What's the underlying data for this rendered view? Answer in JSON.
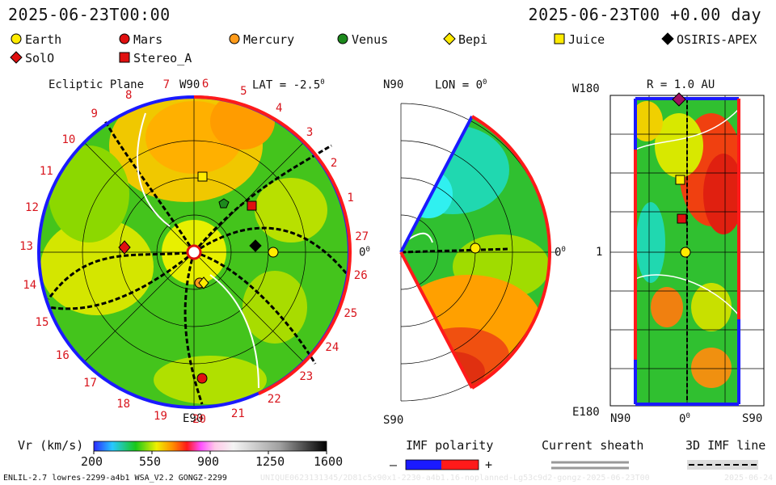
{
  "header": {
    "timestamp_left": "2025-06-23T00:00",
    "timestamp_right": "2025-06-23T00 +0.00 day"
  },
  "legend": [
    {
      "name": "Earth",
      "marker": "circle",
      "color": "#ffeb00"
    },
    {
      "name": "Mars",
      "marker": "circle",
      "color": "#e01010"
    },
    {
      "name": "Mercury",
      "marker": "circle",
      "color": "#ff9b1a"
    },
    {
      "name": "Venus",
      "marker": "circle",
      "color": "#1d8a1d"
    },
    {
      "name": "Bepi",
      "marker": "diamond",
      "color": "#ffeb00"
    },
    {
      "name": "Juice",
      "marker": "square",
      "color": "#ffeb00"
    },
    {
      "name": "OSIRIS-APEX",
      "marker": "diamond",
      "color": "#000000"
    },
    {
      "name": "SolO",
      "marker": "diamond",
      "color": "#e01010"
    },
    {
      "name": "Stereo_A",
      "marker": "square",
      "color": "#e01010"
    }
  ],
  "panel_ecliptic": {
    "title": "Ecliptic Plane",
    "lat": "LAT = -2.5",
    "lat_deg": "0",
    "top_label": "W90",
    "bottom_label": "E90",
    "right_label": "0",
    "right_label_deg": "0",
    "carrington_labels": [
      "1",
      "2",
      "3",
      "4",
      "5",
      "6",
      "7",
      "8",
      "9",
      "10",
      "11",
      "12",
      "13",
      "14",
      "15",
      "16",
      "17",
      "18",
      "19",
      "20",
      "21",
      "22",
      "23",
      "24",
      "25",
      "26",
      "27"
    ]
  },
  "panel_meridional": {
    "lon": "LON = 0",
    "lon_deg": "0",
    "top_label": "N90",
    "bottom_label": "S90",
    "right_label": "0",
    "right_label_deg": "0"
  },
  "panel_latlon": {
    "title": "R = 1.0 AU",
    "top_label": "W180",
    "mid_label": "1",
    "bottom_label": "E180",
    "x_left": "N90",
    "x_mid": "0",
    "x_mid_deg": "0",
    "x_right": "S90"
  },
  "chart_data": {
    "type": "heatmap",
    "quantity": "Vr (km/s)",
    "colorbar": {
      "label": "Vr (km/s)",
      "min": 200,
      "max": 1600,
      "ticks": [
        200,
        550,
        900,
        1250,
        1600
      ]
    },
    "colors": {
      "polarity_negative": "#1a1aff",
      "polarity_positive": "#ff1a1a"
    }
  },
  "bottom_legend": {
    "imf_polarity": "IMF polarity",
    "minus": "–",
    "plus": "+",
    "current_sheath": "Current sheath",
    "imf_line": "3D IMF line"
  },
  "footer": {
    "model_info": "ENLIL-2.7 lowres-2299-a4b1 WSA_V2.2 GONGZ-2299",
    "run_info": "UNIQUE0623131345/2D81c5x90x1-2230-a4b1.16-noplanned-Lg53c9d2-gongz-2025-06-23T00",
    "run_date": "2025-06-24"
  }
}
